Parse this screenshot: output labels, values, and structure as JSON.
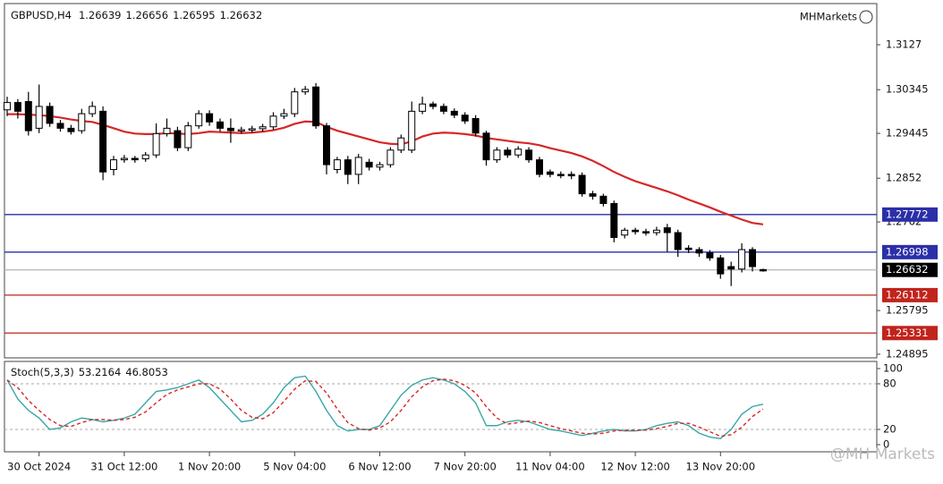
{
  "chart_data": [
    {
      "type": "candlestick",
      "symbol": "GBPUSD,H4",
      "watermark": "MHMarkets",
      "footer_watermark": "@MH Markets",
      "categories": [
        null,
        null,
        null,
        "30 Oct 2024",
        null,
        null,
        null,
        null,
        null,
        null,
        null,
        "31 Oct 12:00",
        null,
        null,
        null,
        null,
        null,
        null,
        null,
        "1 Nov 20:00",
        null,
        null,
        null,
        null,
        null,
        null,
        null,
        "5 Nov 04:00",
        null,
        null,
        null,
        null,
        null,
        null,
        null,
        "6 Nov 12:00",
        null,
        null,
        null,
        null,
        null,
        null,
        null,
        "7 Nov 20:00",
        null,
        null,
        null,
        null,
        null,
        null,
        null,
        "11 Nov 04:00",
        null,
        null,
        null,
        null,
        null,
        null,
        null,
        "12 Nov 12:00",
        null,
        null,
        null,
        null,
        null,
        null,
        null,
        "13 Nov 20:00",
        null,
        null,
        null,
        null
      ],
      "open": [
        1.2993,
        1.3008,
        1.301,
        1.2955,
        1.3,
        1.2965,
        1.2955,
        1.295,
        1.2985,
        1.299,
        1.287,
        1.289,
        1.2893,
        1.2892,
        1.29,
        1.2944,
        1.295,
        1.2915,
        1.296,
        1.2985,
        1.2968,
        1.2955,
        1.295,
        1.2952,
        1.2954,
        1.2958,
        1.298,
        1.2985,
        1.303,
        1.304,
        1.296,
        1.287,
        1.289,
        1.286,
        1.2885,
        1.2875,
        1.288,
        1.291,
        1.291,
        1.299,
        1.3005,
        1.3,
        1.299,
        1.2982,
        1.2975,
        1.2945,
        1.289,
        1.291,
        1.29,
        1.291,
        1.289,
        1.2865,
        1.286,
        1.286,
        1.2858,
        1.282,
        1.2815,
        1.28,
        1.2735,
        1.2745,
        1.2742,
        1.274,
        1.275,
        1.274,
        1.2708,
        1.2705,
        1.2698,
        1.2688,
        1.267,
        1.2665,
        1.2705,
        1.26639
      ],
      "high": [
        1.302,
        1.3015,
        1.303,
        1.3045,
        1.3008,
        1.2972,
        1.2962,
        1.2995,
        1.301,
        1.3,
        1.2898,
        1.29,
        1.2898,
        1.2906,
        1.2965,
        1.2975,
        1.2958,
        1.2968,
        1.2992,
        1.2992,
        1.2975,
        1.2975,
        1.2958,
        1.296,
        1.2964,
        1.2988,
        1.2995,
        1.3038,
        1.3042,
        1.3048,
        1.2966,
        1.2896,
        1.2898,
        1.2902,
        1.2892,
        1.2886,
        1.2916,
        1.2942,
        1.301,
        1.302,
        1.301,
        1.3006,
        1.2996,
        1.2988,
        1.2982,
        1.295,
        1.2916,
        1.2916,
        1.2918,
        1.2916,
        1.2896,
        1.287,
        1.2866,
        1.2866,
        1.2864,
        1.2826,
        1.282,
        1.2806,
        1.275,
        1.275,
        1.2748,
        1.2752,
        1.2758,
        1.2746,
        1.2714,
        1.271,
        1.2704,
        1.2694,
        1.268,
        1.2718,
        1.271,
        1.26656
      ],
      "low": [
        1.298,
        1.2975,
        1.294,
        1.2945,
        1.2958,
        1.2948,
        1.2942,
        1.2944,
        1.2978,
        1.2848,
        1.2858,
        1.2884,
        1.2884,
        1.2886,
        1.2894,
        1.2938,
        1.2908,
        1.2908,
        1.2954,
        1.296,
        1.2948,
        1.2925,
        1.2944,
        1.2946,
        1.2948,
        1.2952,
        1.2974,
        1.2978,
        1.3024,
        1.2954,
        1.286,
        1.2862,
        1.284,
        1.284,
        1.2868,
        1.2868,
        1.2874,
        1.2904,
        1.2904,
        1.2984,
        1.2994,
        1.2984,
        1.2976,
        1.2964,
        1.2938,
        1.2878,
        1.2884,
        1.2894,
        1.2894,
        1.2884,
        1.2854,
        1.2854,
        1.2852,
        1.285,
        1.2814,
        1.2808,
        1.2794,
        1.272,
        1.2728,
        1.2736,
        1.2734,
        1.2734,
        1.27,
        1.269,
        1.2698,
        1.269,
        1.2682,
        1.2645,
        1.263,
        1.2658,
        1.266,
        1.26595
      ],
      "close": [
        1.3008,
        1.299,
        1.295,
        1.3,
        1.2965,
        1.2955,
        1.2948,
        1.2985,
        1.3,
        1.2865,
        1.289,
        1.2893,
        1.289,
        1.29,
        1.2944,
        1.2955,
        1.2915,
        1.296,
        1.2985,
        1.2968,
        1.2955,
        1.295,
        1.2952,
        1.2954,
        1.2958,
        1.298,
        1.2985,
        1.303,
        1.3035,
        1.296,
        1.288,
        1.289,
        1.286,
        1.2895,
        1.2875,
        1.288,
        1.291,
        1.2935,
        1.299,
        1.3005,
        1.3,
        1.299,
        1.2982,
        1.297,
        1.2945,
        1.289,
        1.291,
        1.29,
        1.2912,
        1.289,
        1.286,
        1.286,
        1.2858,
        1.2857,
        1.282,
        1.2815,
        1.28,
        1.273,
        1.2745,
        1.2742,
        1.274,
        1.2745,
        1.274,
        1.2705,
        1.2705,
        1.2698,
        1.2688,
        1.2655,
        1.2665,
        1.2705,
        1.267,
        1.26632
      ],
      "up_color": "#ffffff",
      "down_color": "#000000",
      "ma": {
        "color": "#d62728",
        "values": [
          1.2984,
          1.2984,
          1.2983,
          1.2982,
          1.298,
          1.2977,
          1.2973,
          1.297,
          1.2968,
          1.2962,
          1.2955,
          1.2948,
          1.2944,
          1.2943,
          1.2943,
          1.2945,
          1.2944,
          1.2943,
          1.2945,
          1.2948,
          1.2947,
          1.2946,
          1.2945,
          1.2946,
          1.2948,
          1.2951,
          1.2956,
          1.2964,
          1.2969,
          1.2968,
          1.2958,
          1.295,
          1.2944,
          1.2938,
          1.2932,
          1.2926,
          1.2923,
          1.2922,
          1.2928,
          1.2938,
          1.2944,
          1.2946,
          1.2945,
          1.2943,
          1.294,
          1.2935,
          1.2932,
          1.2929,
          1.2926,
          1.2924,
          1.292,
          1.2914,
          1.2909,
          1.2904,
          1.2897,
          1.2888,
          1.2877,
          1.2865,
          1.2855,
          1.2846,
          1.2839,
          1.2832,
          1.2825,
          1.2817,
          1.2808,
          1.28,
          1.2792,
          1.2783,
          1.2775,
          1.2767,
          1.276,
          1.2757
        ]
      },
      "levels": [
        {
          "value": 1.27772,
          "color": "#2b2fa8"
        },
        {
          "value": 1.26998,
          "color": "#2b2fa8"
        },
        {
          "value": 1.26632,
          "color": "#000000"
        },
        {
          "value": 1.26112,
          "color": "#c0241c"
        },
        {
          "value": 1.25331,
          "color": "#c0241c"
        }
      ],
      "ylim": [
        1.2482,
        1.321
      ],
      "yticks": [
        1.3127,
        1.30345,
        1.29445,
        1.2852,
        1.2762,
        1.25795,
        1.24895
      ]
    },
    {
      "type": "line",
      "title": "Stoch(5,3,3)",
      "series": [
        {
          "color": "#3aa6a6",
          "dashed": false,
          "values": [
            85,
            60,
            45,
            35,
            20,
            22,
            30,
            35,
            33,
            30,
            32,
            35,
            40,
            55,
            70,
            72,
            75,
            80,
            85,
            75,
            60,
            45,
            30,
            32,
            40,
            55,
            75,
            88,
            90,
            70,
            45,
            25,
            18,
            20,
            20,
            25,
            45,
            65,
            78,
            85,
            88,
            85,
            80,
            70,
            55,
            25,
            25,
            30,
            32,
            30,
            25,
            20,
            18,
            15,
            12,
            15,
            18,
            20,
            18,
            18,
            20,
            25,
            28,
            30,
            25,
            15,
            10,
            8,
            20,
            40,
            50,
            53.2164
          ]
        },
        {
          "color": "#d62728",
          "dashed": true,
          "values": [
            85,
            75,
            58,
            45,
            33,
            25,
            24,
            29,
            33,
            33,
            32,
            33,
            36,
            43,
            55,
            66,
            72,
            76,
            80,
            80,
            73,
            60,
            45,
            36,
            34,
            42,
            57,
            73,
            84,
            83,
            68,
            47,
            29,
            21,
            19,
            22,
            30,
            45,
            63,
            76,
            84,
            86,
            84,
            78,
            68,
            50,
            35,
            27,
            29,
            31,
            29,
            25,
            21,
            18,
            15,
            14,
            15,
            18,
            19,
            19,
            19,
            21,
            24,
            28,
            28,
            23,
            17,
            11,
            13,
            23,
            37,
            46.8053
          ]
        }
      ],
      "levels": [
        80,
        20
      ],
      "ylim": [
        -9.4,
        109.4
      ],
      "yticks": [
        100,
        80,
        20,
        0
      ]
    }
  ]
}
